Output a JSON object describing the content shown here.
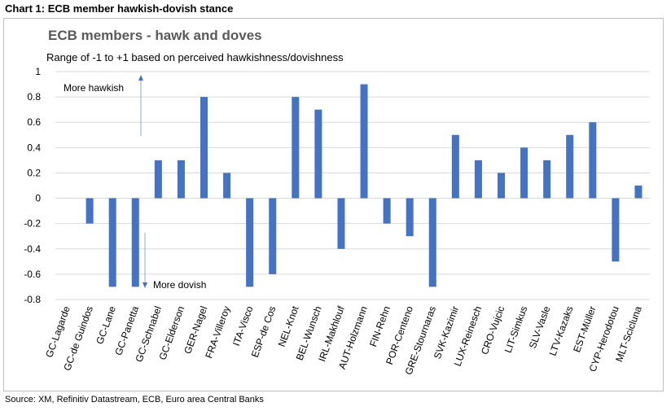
{
  "caption": "Chart 1: ECB member hawkish-dovish stance",
  "source": "Source: XM, Refinitiv Datastream, ECB, Euro area Central Banks",
  "chart_data": {
    "type": "bar",
    "title": "ECB members - hawk and doves",
    "subtitle": "Range of -1 to +1 based on perceived hawkishness/dovishness",
    "xlabel": "",
    "ylabel": "",
    "ylim": [
      -0.8,
      1
    ],
    "yticks": [
      1,
      0.8,
      0.6,
      0.4,
      0.2,
      0,
      -0.2,
      -0.4,
      -0.6,
      -0.8
    ],
    "ytick_labels": [
      "1",
      "0.8",
      "0.6",
      "0.4",
      "0.2",
      "0",
      "-0.2",
      "-0.4",
      "-0.6",
      "-0.8"
    ],
    "grid": true,
    "bar_color": "#4472c4",
    "categories": [
      "GC-Lagarde",
      "GC-de Guindos",
      "GC-Lane",
      "GC-Panetta",
      "GC-Schnabel",
      "GC-Elderson",
      "GER-Nagel",
      "FRA-Villeroy",
      "ITA-Visco",
      "ESP-de Cos",
      "NEL-Knot",
      "BEL-Wunsch",
      "IRL-Makhlouf",
      "AUT-Holzmann",
      "FIN-Rehn",
      "POR-Centeno",
      "GRE-Stournaras",
      "SVK-Kazimir",
      "LUX-Reinesch",
      "CRO-Vujcic",
      "LIT-Simkus",
      "SLV-Vasle",
      "LTV-Kazaks",
      "EST-Müller",
      "CYP-Herodotou",
      "MLT-Scicluna"
    ],
    "values": [
      0,
      -0.2,
      -0.7,
      -0.7,
      0.3,
      0.3,
      0.8,
      0.2,
      -0.7,
      -0.6,
      0.8,
      0.7,
      -0.4,
      0.9,
      -0.2,
      -0.3,
      -0.7,
      0.5,
      0.3,
      0.2,
      0.4,
      0.3,
      0.5,
      0.6,
      -0.5,
      0.1
    ],
    "annotations": [
      {
        "text": "More hawkish",
        "arrow": "up"
      },
      {
        "text": "More dovish",
        "arrow": "down"
      }
    ]
  }
}
